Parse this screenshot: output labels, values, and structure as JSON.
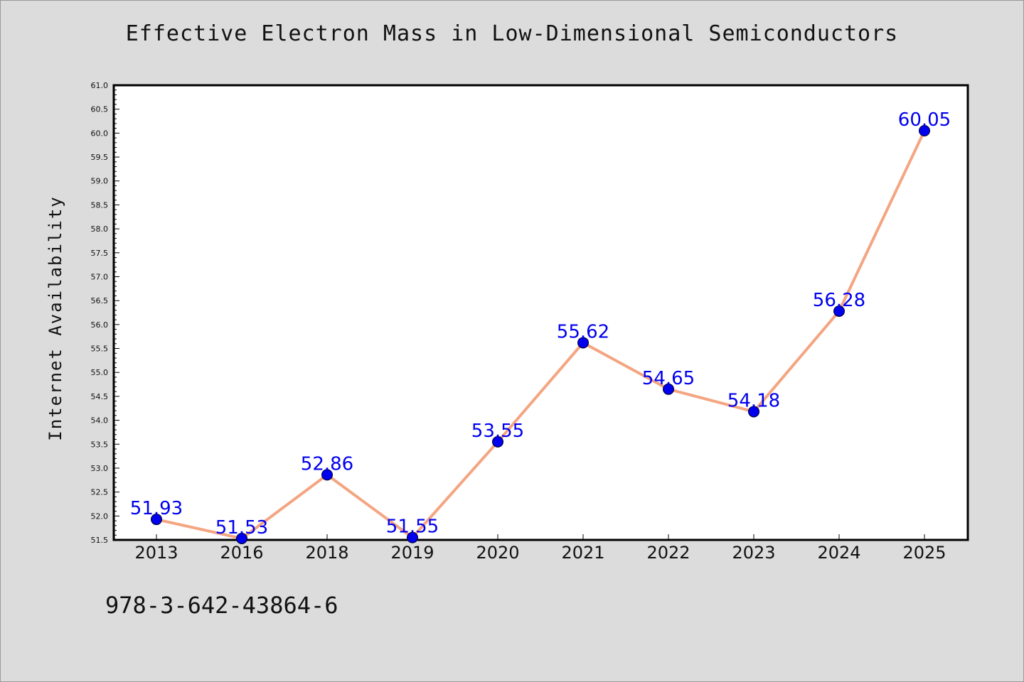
{
  "chart_data": {
    "type": "line",
    "title": "Effective Electron Mass in Low-Dimensional Semiconductors",
    "xlabel": "",
    "ylabel": "Internet Availability",
    "categories": [
      "2013",
      "2016",
      "2018",
      "2019",
      "2020",
      "2021",
      "2022",
      "2023",
      "2024",
      "2025"
    ],
    "series": [
      {
        "values": [
          51.93,
          51.53,
          52.86,
          51.55,
          53.55,
          55.62,
          54.65,
          54.18,
          56.28,
          60.05
        ],
        "labels": [
          "51.93",
          "51.53",
          "52.86",
          "51.55",
          "53.55",
          "55.62",
          "54.65",
          "54.18",
          "56.28",
          "60.05"
        ]
      }
    ],
    "ylim": [
      51.5,
      61.0
    ],
    "yticks": [
      "51.5",
      "52.0",
      "52.5",
      "53.0",
      "53.5",
      "54.0",
      "54.5",
      "55.0",
      "55.5",
      "56.0",
      "56.5",
      "57.0",
      "57.5",
      "58.0",
      "58.5",
      "59.0",
      "59.5",
      "60.0",
      "60.5",
      "61.0"
    ],
    "grid": false,
    "line_color": "#f4a582",
    "marker_color": "#0000ee",
    "label_color": "#0000ee"
  },
  "footnote": "978-3-642-43864-6"
}
